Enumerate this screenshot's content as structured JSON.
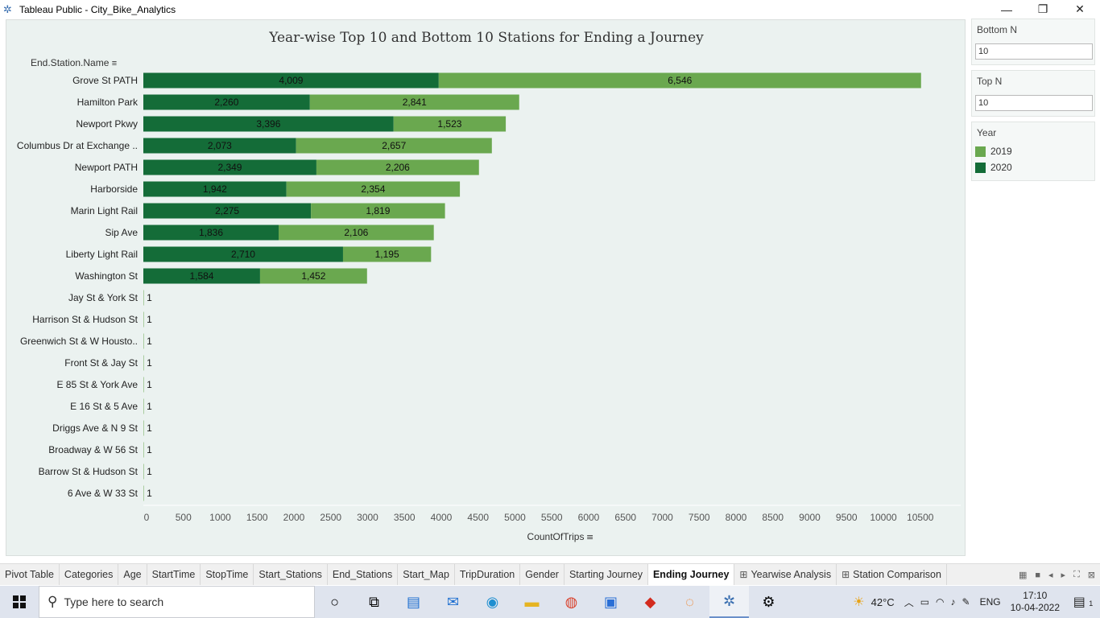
{
  "window": {
    "title": "Tableau Public - City_Bike_Analytics",
    "min_glyph": "—",
    "max_glyph": "❐",
    "close_glyph": "✕"
  },
  "viz": {
    "title": "Year-wise Top 10 and Bottom 10 Stations for Ending a Journey",
    "row_header": "End.Station.Name",
    "x_axis_label": "CountOfTrips"
  },
  "colors": {
    "y2019": "#6aa84f",
    "y2020": "#146c38",
    "background": "#ebf2f0"
  },
  "chart_data": {
    "type": "bar",
    "orientation": "horizontal",
    "stacked": true,
    "categories": [
      "Grove St PATH",
      "Hamilton Park",
      "Newport Pkwy",
      "Columbus Dr at Exchange ..",
      "Newport PATH",
      "Harborside",
      "Marin Light Rail",
      "Sip Ave",
      "Liberty Light Rail",
      "Washington St",
      "Jay St & York St",
      "Harrison St & Hudson St",
      "Greenwich St & W Housto..",
      "Front St & Jay St",
      "E 85 St & York Ave",
      "E 16 St & 5 Ave",
      "Driggs Ave & N 9 St",
      "Broadway & W 56 St",
      "Barrow St & Hudson St",
      "6 Ave & W 33 St"
    ],
    "series": [
      {
        "name": "2020",
        "values": [
          4009,
          2260,
          3396,
          2073,
          2349,
          1942,
          2275,
          1836,
          2710,
          1584,
          null,
          null,
          null,
          null,
          null,
          null,
          null,
          null,
          null,
          null
        ],
        "labels": [
          "4,009",
          "2,260",
          "3,396",
          "2,073",
          "2,349",
          "1,942",
          "2,275",
          "1,836",
          "2,710",
          "1,584",
          "",
          "",
          "",
          "",
          "",
          "",
          "",
          "",
          "",
          ""
        ]
      },
      {
        "name": "2019",
        "values": [
          6546,
          2841,
          1523,
          2657,
          2206,
          2354,
          1819,
          2106,
          1195,
          1452,
          1,
          1,
          1,
          1,
          1,
          1,
          1,
          1,
          1,
          1
        ],
        "labels": [
          "6,546",
          "2,841",
          "1,523",
          "2,657",
          "2,206",
          "2,354",
          "1,819",
          "2,106",
          "1,195",
          "1,452",
          "1",
          "1",
          "1",
          "1",
          "1",
          "1",
          "1",
          "1",
          "1",
          "1"
        ]
      }
    ],
    "x_ticks": [
      0,
      500,
      1000,
      1500,
      2000,
      2500,
      3000,
      3500,
      4000,
      4500,
      5000,
      5500,
      6000,
      6500,
      7000,
      7500,
      8000,
      8500,
      9000,
      9500,
      10000,
      10500
    ],
    "xlim": [
      0,
      11000
    ],
    "xlabel": "CountOfTrips",
    "legend_position": "right"
  },
  "filters": {
    "bottom_n": {
      "label": "Bottom N",
      "value": "10"
    },
    "top_n": {
      "label": "Top N",
      "value": "10"
    },
    "legend": {
      "title": "Year",
      "items": [
        {
          "label": "2019"
        },
        {
          "label": "2020"
        }
      ]
    }
  },
  "tabs": [
    {
      "label": "Pivot Table",
      "grid": false,
      "active": false
    },
    {
      "label": "Categories",
      "grid": false,
      "active": false
    },
    {
      "label": "Age",
      "grid": false,
      "active": false
    },
    {
      "label": "StartTime",
      "grid": false,
      "active": false
    },
    {
      "label": "StopTime",
      "grid": false,
      "active": false
    },
    {
      "label": "Start_Stations",
      "grid": false,
      "active": false
    },
    {
      "label": "End_Stations",
      "grid": false,
      "active": false
    },
    {
      "label": "Start_Map",
      "grid": false,
      "active": false
    },
    {
      "label": "TripDuration",
      "grid": false,
      "active": false
    },
    {
      "label": "Gender",
      "grid": false,
      "active": false
    },
    {
      "label": "Starting Journey",
      "grid": false,
      "active": false
    },
    {
      "label": "Ending Journey",
      "grid": false,
      "active": true
    },
    {
      "label": "Yearwise Analysis",
      "grid": true,
      "active": false
    },
    {
      "label": "Station Comparison",
      "grid": true,
      "active": false
    }
  ],
  "taskbar": {
    "search_placeholder": "Type here to search",
    "temperature": "42°C",
    "language": "ENG",
    "time": "17:10",
    "date": "10-04-2022",
    "notification_count": "1"
  }
}
